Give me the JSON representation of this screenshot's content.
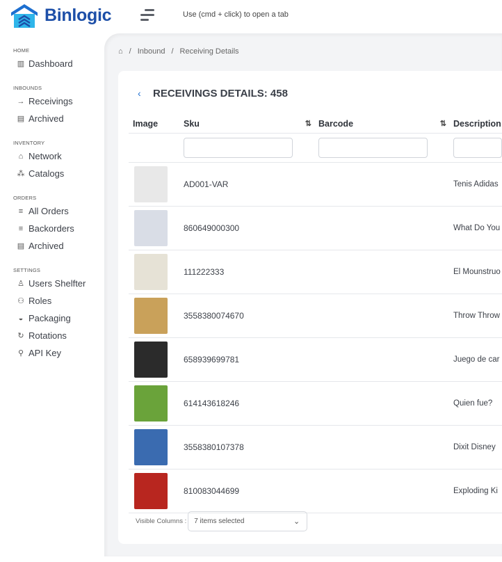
{
  "app": {
    "name": "Binlogic",
    "hint": "Use (cmd + click) to open a tab"
  },
  "sidebar": {
    "sections": [
      {
        "title": "HOME",
        "items": [
          {
            "label": "Dashboard",
            "icon": "bar-chart-icon"
          }
        ]
      },
      {
        "title": "INBOUNDS",
        "items": [
          {
            "label": "Receivings",
            "icon": "sign-in-icon"
          },
          {
            "label": "Archived",
            "icon": "archive-icon"
          }
        ]
      },
      {
        "title": "INVENTORY",
        "items": [
          {
            "label": "Network",
            "icon": "home-icon"
          },
          {
            "label": "Catalogs",
            "icon": "sitemap-icon"
          }
        ]
      },
      {
        "title": "ORDERS",
        "items": [
          {
            "label": "All Orders",
            "icon": "list-icon"
          },
          {
            "label": "Backorders",
            "icon": "list-icon"
          },
          {
            "label": "Archived",
            "icon": "archive-icon"
          }
        ]
      },
      {
        "title": "SETTINGS",
        "items": [
          {
            "label": "Users Shelfter",
            "icon": "user-icon"
          },
          {
            "label": "Roles",
            "icon": "users-icon"
          },
          {
            "label": "Packaging",
            "icon": "inbox-icon"
          },
          {
            "label": "Rotations",
            "icon": "refresh-icon"
          },
          {
            "label": "API Key",
            "icon": "key-icon"
          }
        ]
      }
    ]
  },
  "breadcrumb": {
    "items": [
      "Inbound",
      "Receiving Details"
    ]
  },
  "page": {
    "title": "RECEIVINGS DETAILS: 458"
  },
  "table": {
    "columns": [
      "Image",
      "Sku",
      "Barcode",
      "Description"
    ],
    "rows": [
      {
        "sku": "AD001-VAR",
        "description": "Tenis Adidas",
        "thumb": "#e8e8e8"
      },
      {
        "sku": "860649000300",
        "description": "What Do You",
        "thumb": "#d9dde6"
      },
      {
        "sku": "111222333",
        "description": "El Mounstruo",
        "thumb": "#e6e2d6"
      },
      {
        "sku": "3558380074670",
        "description": "Throw Throw",
        "thumb": "#c9a15a"
      },
      {
        "sku": "658939699781",
        "description": "Juego de car",
        "thumb": "#2b2b2b"
      },
      {
        "sku": "614143618246",
        "description": "Quien fue?",
        "thumb": "#6aa33a"
      },
      {
        "sku": "3558380107378",
        "description": "Dixit Disney",
        "thumb": "#3a6bb0"
      },
      {
        "sku": "810083044699",
        "description": "Exploding Ki",
        "thumb": "#b8261f"
      }
    ]
  },
  "footer": {
    "visible_columns_label": "Visible Columns :",
    "selected": "7 items selected"
  },
  "colors": {
    "brand": "#1d4fa8",
    "accent": "#1d6fd0",
    "background": "#f3f4f6"
  }
}
